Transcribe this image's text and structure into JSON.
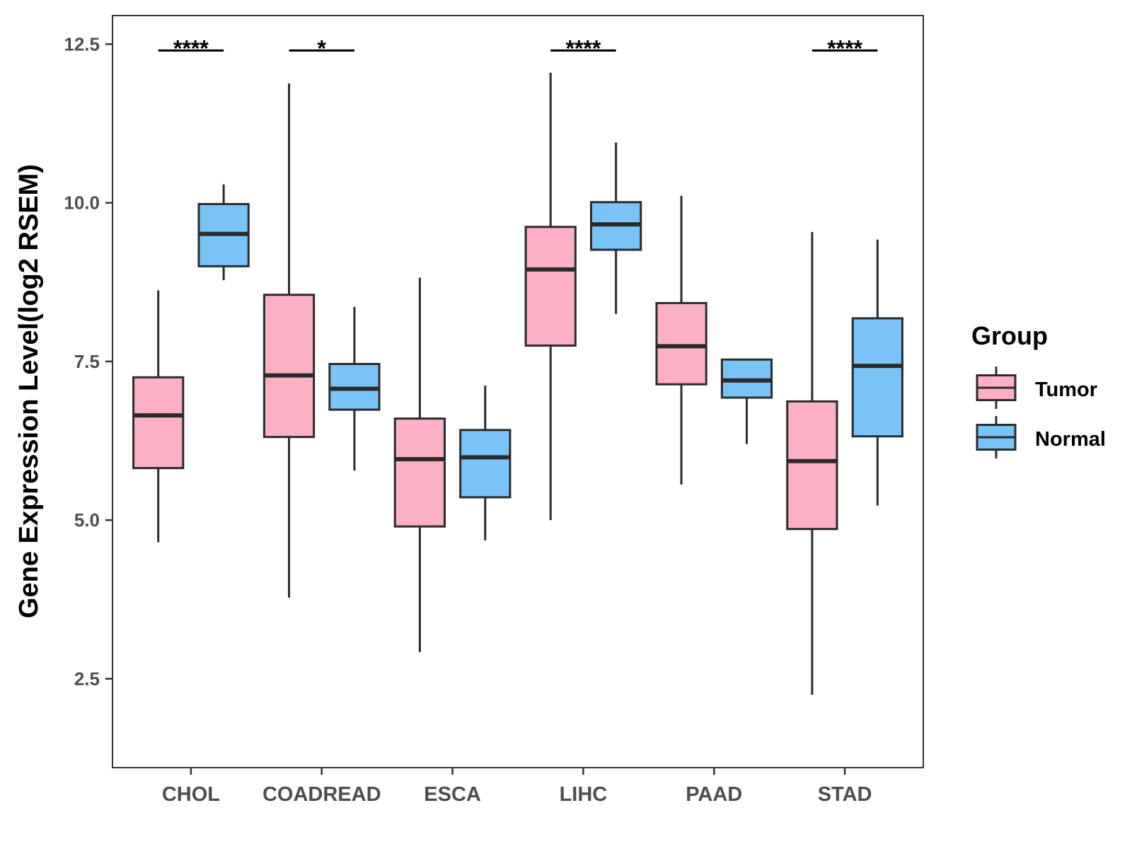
{
  "chart_data": {
    "type": "box",
    "title": "",
    "xlabel": "",
    "ylabel": "Gene Expression Level(log2 RSEM)",
    "ylim": [
      1.1,
      12.95
    ],
    "yticks": [
      "2.5",
      "5.0",
      "7.5",
      "10.0",
      "12.5"
    ],
    "ytick_values": [
      2.5,
      5.0,
      7.5,
      10.0,
      12.5
    ],
    "categories": [
      "CHOL",
      "COADREAD",
      "ESCA",
      "LIHC",
      "PAAD",
      "STAD"
    ],
    "legend": {
      "title": "Group",
      "position": "right",
      "entries": [
        "Tumor",
        "Normal"
      ]
    },
    "series": [
      {
        "name": "Tumor",
        "color": "#FBB1C3",
        "boxes": [
          {
            "min": 4.65,
            "q1": 5.82,
            "median": 6.65,
            "q3": 7.25,
            "max": 8.62
          },
          {
            "min": 3.78,
            "q1": 6.31,
            "median": 7.28,
            "q3": 8.55,
            "max": 11.88
          },
          {
            "min": 2.92,
            "q1": 4.9,
            "median": 5.96,
            "q3": 6.6,
            "max": 8.82
          },
          {
            "min": 5.0,
            "q1": 7.75,
            "median": 8.95,
            "q3": 9.62,
            "max": 12.05
          },
          {
            "min": 5.56,
            "q1": 7.14,
            "median": 7.74,
            "q3": 8.42,
            "max": 10.11
          },
          {
            "min": 2.25,
            "q1": 4.86,
            "median": 5.93,
            "q3": 6.87,
            "max": 9.54
          }
        ]
      },
      {
        "name": "Normal",
        "color": "#79C3F7",
        "boxes": [
          {
            "min": 8.78,
            "q1": 9.0,
            "median": 9.51,
            "q3": 9.98,
            "max": 10.29
          },
          {
            "min": 5.78,
            "q1": 6.74,
            "median": 7.07,
            "q3": 7.46,
            "max": 8.36
          },
          {
            "min": 4.68,
            "q1": 5.36,
            "median": 5.99,
            "q3": 6.42,
            "max": 7.12
          },
          {
            "min": 8.25,
            "q1": 9.26,
            "median": 9.66,
            "q3": 10.01,
            "max": 10.95
          },
          {
            "min": 6.2,
            "q1": 6.93,
            "median": 7.2,
            "q3": 7.53,
            "max": 7.53
          },
          {
            "min": 5.23,
            "q1": 6.32,
            "median": 7.43,
            "q3": 8.18,
            "max": 9.42
          }
        ]
      }
    ],
    "significance": [
      {
        "category": "CHOL",
        "label": "****",
        "y": 12.4
      },
      {
        "category": "COADREAD",
        "label": "*",
        "y": 12.4
      },
      {
        "category": "LIHC",
        "label": "****",
        "y": 12.4
      },
      {
        "category": "STAD",
        "label": "****",
        "y": 12.4
      }
    ]
  }
}
